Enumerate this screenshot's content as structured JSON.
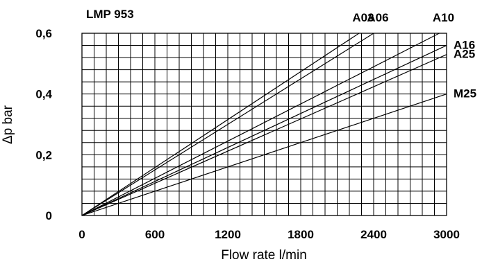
{
  "chart_data": {
    "type": "line",
    "title": "LMP 953",
    "xlabel": "Flow rate l/min",
    "ylabel": "Δp bar",
    "xlim": [
      0,
      3000
    ],
    "ylim": [
      0,
      0.6
    ],
    "x_ticks": [
      0,
      600,
      1200,
      1800,
      2400,
      3000
    ],
    "x_tick_labels": [
      "0",
      "600",
      "1200",
      "1800",
      "2400",
      "3000"
    ],
    "y_ticks": [
      0,
      0.2,
      0.4,
      0.6
    ],
    "y_tick_labels": [
      "0",
      "0,2",
      "0,4",
      "0,6"
    ],
    "grid": true,
    "series": [
      {
        "name": "A03",
        "x": [
          0,
          2280
        ],
        "y": [
          0,
          0.6
        ]
      },
      {
        "name": "A06",
        "x": [
          0,
          2400
        ],
        "y": [
          0,
          0.6
        ]
      },
      {
        "name": "A10",
        "x": [
          0,
          2940
        ],
        "y": [
          0,
          0.6
        ]
      },
      {
        "name": "A16",
        "x": [
          0,
          3000
        ],
        "y": [
          0,
          0.56
        ]
      },
      {
        "name": "A25",
        "x": [
          0,
          3000
        ],
        "y": [
          0,
          0.53
        ]
      },
      {
        "name": "M25",
        "x": [
          0,
          3000
        ],
        "y": [
          0,
          0.4
        ]
      }
    ]
  }
}
